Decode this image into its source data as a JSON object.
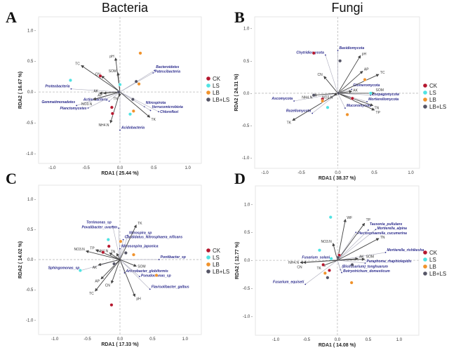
{
  "groups": [
    {
      "name": "CK",
      "color": "#b5172e"
    },
    {
      "name": "LS",
      "color": "#4fe3e3"
    },
    {
      "name": "LB",
      "color": "#f0922b"
    },
    {
      "name": "LB+LS",
      "color": "#555566"
    }
  ],
  "chart_data": [
    {
      "panel": "A",
      "type": "scatter",
      "title": "Bacteria",
      "xlabel": "RDA1 ( 25.44 %)",
      "ylabel": "RDA2 ( 16.67 %)",
      "xlim": [
        -1.2,
        1.2
      ],
      "ylim": [
        -1.16,
        1.22
      ],
      "xticks": [
        -1.0,
        -0.5,
        0.0,
        0.5,
        1.0
      ],
      "yticks": [
        -1.0,
        -0.5,
        0.0,
        0.5,
        1.0
      ],
      "legend": "right",
      "env": [
        {
          "label": "pH",
          "x": -0.065,
          "y": 0.55
        },
        {
          "label": "SOM",
          "x": -0.03,
          "y": 0.31
        },
        {
          "label": "TC",
          "x": -0.57,
          "y": 0.43
        },
        {
          "label": "CN",
          "x": -0.27,
          "y": 0.26
        },
        {
          "label": "AK",
          "x": -0.3,
          "y": -0.02
        },
        {
          "label": "AP",
          "x": -0.24,
          "y": -0.02
        },
        {
          "label": "NO3.N",
          "x": -0.39,
          "y": -0.12
        },
        {
          "label": "TN",
          "x": -0.01,
          "y": -0.07
        },
        {
          "label": "NH4.N",
          "x": -0.14,
          "y": -0.5
        },
        {
          "label": "TK",
          "x": 0.44,
          "y": -0.41
        }
      ],
      "taxa": [
        {
          "label": "Bacteroidetes",
          "x": 0.51,
          "y": 0.35
        },
        {
          "label": "Patescibacteria",
          "x": 0.49,
          "y": 0.31
        },
        {
          "label": "Proteobacteria",
          "x": -0.72,
          "y": 0.05
        },
        {
          "label": "Actinobacteria",
          "x": -0.16,
          "y": -0.15
        },
        {
          "label": "Gemmatimonadetes",
          "x": -0.64,
          "y": -0.22
        },
        {
          "label": "Planctomycetes",
          "x": -0.47,
          "y": -0.26
        },
        {
          "label": "Nitrospirota",
          "x": 0.36,
          "y": -0.24
        },
        {
          "label": "Verrucomicrobiota",
          "x": 0.45,
          "y": -0.3
        },
        {
          "label": "Chloroflexi",
          "x": 0.57,
          "y": -0.32
        },
        {
          "label": "Acidobacteria",
          "x": 0.0,
          "y": -0.62
        }
      ],
      "samples": [
        {
          "group": "CK",
          "x": -0.29,
          "y": 0.26
        },
        {
          "group": "CK",
          "x": -0.12,
          "y": -0.25
        },
        {
          "group": "CK",
          "x": -0.11,
          "y": -0.35
        },
        {
          "group": "LS",
          "x": -0.73,
          "y": 0.19
        },
        {
          "group": "LS",
          "x": 0.0,
          "y": 0.12
        },
        {
          "group": "LS",
          "x": 0.15,
          "y": -0.36
        },
        {
          "group": "LB",
          "x": 0.3,
          "y": 0.63
        },
        {
          "group": "LB",
          "x": 0.28,
          "y": 0.13
        },
        {
          "group": "LB",
          "x": 0.2,
          "y": -0.31
        },
        {
          "group": "LB+LS",
          "x": 0.24,
          "y": 0.17
        },
        {
          "group": "LB+LS",
          "x": 0.19,
          "y": -0.12
        },
        {
          "group": "LB+LS",
          "x": -0.02,
          "y": 0.0
        }
      ]
    },
    {
      "panel": "B",
      "type": "scatter",
      "title": "Fungi",
      "xlabel": "RDA1 ( 38.37 %)",
      "ylabel": "RDA2 ( 24.31 %)",
      "xlim": [
        -1.14,
        1.12
      ],
      "ylim": [
        -1.16,
        1.18
      ],
      "xticks": [
        -1.0,
        -0.5,
        0.0,
        0.5,
        1.0
      ],
      "yticks": [
        -1.0,
        -0.5,
        0.0,
        0.5,
        1.0
      ],
      "legend": "right",
      "env": [
        {
          "label": "pH",
          "x": 0.31,
          "y": 0.58
        },
        {
          "label": "AP",
          "x": 0.34,
          "y": 0.34
        },
        {
          "label": "TC",
          "x": 0.56,
          "y": 0.29
        },
        {
          "label": "CN",
          "x": -0.19,
          "y": 0.26
        },
        {
          "label": "AK",
          "x": 0.19,
          "y": 0.03
        },
        {
          "label": "SOM",
          "x": 0.5,
          "y": 0.0
        },
        {
          "label": "TN",
          "x": 0.48,
          "y": -0.19
        },
        {
          "label": "TP",
          "x": 0.5,
          "y": -0.26
        },
        {
          "label": "TK",
          "x": -0.62,
          "y": -0.42
        },
        {
          "label": "NH4.N",
          "x": -0.33,
          "y": -0.03
        },
        {
          "label": "NO3.N",
          "x": -0.05,
          "y": -0.03
        }
      ],
      "taxa": [
        {
          "label": "Basidiomycota",
          "x": 0.0,
          "y": 0.66
        },
        {
          "label": "Chytridiomycota",
          "x": -0.17,
          "y": 0.59
        },
        {
          "label": "Glomeromycota",
          "x": 0.19,
          "y": 0.06
        },
        {
          "label": "Zoopagomycota",
          "x": 0.45,
          "y": -0.03
        },
        {
          "label": "Mortierellomycota",
          "x": 0.4,
          "y": -0.13
        },
        {
          "label": "Mucoromycota",
          "x": 0.1,
          "y": -0.23
        },
        {
          "label": "Rozellomycota",
          "x": -0.35,
          "y": -0.31
        },
        {
          "label": "Ascomycota",
          "x": -0.6,
          "y": -0.12
        }
      ],
      "samples": [
        {
          "group": "CK",
          "x": -0.33,
          "y": 0.62
        },
        {
          "group": "CK",
          "x": -0.21,
          "y": -0.09
        },
        {
          "group": "CK",
          "x": 0.2,
          "y": -0.08
        },
        {
          "group": "LS",
          "x": -0.14,
          "y": -0.22
        },
        {
          "group": "LS",
          "x": 0.45,
          "y": 0.0
        },
        {
          "group": "LB",
          "x": 0.37,
          "y": 0.21
        },
        {
          "group": "LB",
          "x": -0.21,
          "y": -0.12
        },
        {
          "group": "LB",
          "x": 0.13,
          "y": -0.33
        },
        {
          "group": "LB+LS",
          "x": 0.03,
          "y": 0.5
        },
        {
          "group": "LB+LS",
          "x": -0.33,
          "y": -0.03
        },
        {
          "group": "LB+LS",
          "x": 0.01,
          "y": 0.0
        }
      ]
    },
    {
      "panel": "C",
      "type": "scatter",
      "title": "",
      "xlabel": "RDA1 ( 17.33 %)",
      "ylabel": "RDA2 ( 14.02 %)",
      "xlim": [
        -1.25,
        1.25
      ],
      "ylim": [
        -1.24,
        1.23
      ],
      "xticks": [
        -1.0,
        -0.5,
        0.0,
        0.5,
        1.0
      ],
      "yticks": [
        -1.0,
        -0.5,
        0.0,
        0.5,
        1.0
      ],
      "legend": "right",
      "env": [
        {
          "label": "TK",
          "x": 0.25,
          "y": 0.57
        },
        {
          "label": "TN",
          "x": -0.05,
          "y": 0.1
        },
        {
          "label": "NH4.N",
          "x": -0.16,
          "y": 0.11
        },
        {
          "label": "TP",
          "x": -0.37,
          "y": 0.16
        },
        {
          "label": "NO3.N",
          "x": -0.52,
          "y": 0.14
        },
        {
          "label": "AK",
          "x": -0.33,
          "y": -0.09
        },
        {
          "label": "AP",
          "x": -0.29,
          "y": -0.32
        },
        {
          "label": "TC",
          "x": -0.38,
          "y": -0.52
        },
        {
          "label": "CN",
          "x": -0.13,
          "y": -0.39
        },
        {
          "label": "SOM",
          "x": 0.25,
          "y": -0.11
        },
        {
          "label": "pH",
          "x": 0.23,
          "y": -0.61
        }
      ],
      "taxa": [
        {
          "label": "Povalibacter_uvarum",
          "x": -0.02,
          "y": 0.52
        },
        {
          "label": "Terrimonas_sp",
          "x": -0.11,
          "y": 0.55
        },
        {
          "label": "Nitrospira_sp",
          "x": 0.12,
          "y": 0.4
        },
        {
          "label": "Candidatus_Nitrosphaera_nificans",
          "x": 0.05,
          "y": 0.33
        },
        {
          "label": "Nitrosospira_japonica",
          "x": 0.0,
          "y": 0.18
        },
        {
          "label": "Pontibacter_sp",
          "x": 0.6,
          "y": 0.0
        },
        {
          "label": "Sphingomonas_sp",
          "x": -0.6,
          "y": -0.18
        },
        {
          "label": "Arthrobacter_globiformis",
          "x": 0.07,
          "y": -0.22
        },
        {
          "label": "Pseudomonas_sp",
          "x": 0.3,
          "y": -0.28
        },
        {
          "label": "Flavisolibacter_galbus",
          "x": 0.46,
          "y": -0.49
        }
      ],
      "samples": [
        {
          "group": "CK",
          "x": -0.26,
          "y": 0.12
        },
        {
          "group": "CK",
          "x": -0.17,
          "y": 0.22
        },
        {
          "group": "CK",
          "x": -0.13,
          "y": -0.75
        },
        {
          "group": "LS",
          "x": -0.18,
          "y": 0.33
        },
        {
          "group": "LS",
          "x": -0.61,
          "y": -0.18
        },
        {
          "group": "LB",
          "x": 0.01,
          "y": 0.3
        },
        {
          "group": "LB",
          "x": 0.21,
          "y": 0.08
        },
        {
          "group": "LB",
          "x": 0.56,
          "y": -0.26
        },
        {
          "group": "LB+LS",
          "x": 0.09,
          "y": 0.11
        },
        {
          "group": "LB+LS",
          "x": -0.09,
          "y": -0.07
        }
      ]
    },
    {
      "panel": "D",
      "type": "scatter",
      "title": "",
      "xlabel": "RDA1 ( 14.08 %)",
      "ylabel": "RDA2 ( 12.77 %)",
      "xlim": [
        -1.33,
        1.32
      ],
      "ylim": [
        -1.34,
        1.33
      ],
      "xticks": [
        -1.0,
        -0.5,
        0.0,
        0.5,
        1.0
      ],
      "yticks": [
        -1.0,
        -0.5,
        0.0,
        0.5,
        1.0
      ],
      "legend": "right",
      "env": [
        {
          "label": "WF",
          "x": 0.13,
          "y": 0.73
        },
        {
          "label": "TP",
          "x": 0.44,
          "y": 0.66
        },
        {
          "label": "TN",
          "x": 0.67,
          "y": 0.39
        },
        {
          "label": "NO3.N",
          "x": -0.07,
          "y": 0.3
        },
        {
          "label": "AK",
          "x": 0.33,
          "y": 0.03
        },
        {
          "label": "SOM",
          "x": 0.44,
          "y": 0.02
        },
        {
          "label": "NH4.N",
          "x": -0.6,
          "y": -0.04
        },
        {
          "label": "CN",
          "x": -0.55,
          "y": -0.04
        },
        {
          "label": "TK",
          "x": -0.24,
          "y": -0.1
        }
      ],
      "taxa": [
        {
          "label": "Plectosphaerella_cucumerina",
          "x": 0.3,
          "y": 0.5
        },
        {
          "label": "Tausonia_pullulans",
          "x": 0.5,
          "y": 0.54
        },
        {
          "label": "Mortierella_alpina",
          "x": 0.62,
          "y": 0.55
        },
        {
          "label": "Mortierella_rishikesha",
          "x": 0.78,
          "y": 0.14
        },
        {
          "label": "Paraphoma_rhaphiolepidis",
          "x": 0.45,
          "y": -0.05
        },
        {
          "label": "Fusarium_solani",
          "x": -0.1,
          "y": 0.01
        },
        {
          "label": "(Bisifusarium)_tonghuarum",
          "x": 0.05,
          "y": -0.17
        },
        {
          "label": "Botryotrichum_domesticum",
          "x": 0.07,
          "y": -0.22
        },
        {
          "label": "Fusarium_equiseti",
          "x": -0.52,
          "y": -0.43
        }
      ],
      "samples": [
        {
          "group": "CK",
          "x": -0.23,
          "y": -0.08
        },
        {
          "group": "CK",
          "x": -0.13,
          "y": -0.18
        },
        {
          "group": "CK",
          "x": 0.03,
          "y": 0.09
        },
        {
          "group": "LS",
          "x": -0.11,
          "y": 0.77
        },
        {
          "group": "LS",
          "x": -0.29,
          "y": 0.18
        },
        {
          "group": "LS",
          "x": -0.1,
          "y": 0.03
        },
        {
          "group": "LB",
          "x": 0.23,
          "y": -0.4
        },
        {
          "group": "LB",
          "x": -0.2,
          "y": -0.23
        },
        {
          "group": "LB+LS",
          "x": 0.24,
          "y": -0.08
        },
        {
          "group": "LB+LS",
          "x": -0.16,
          "y": -0.31
        },
        {
          "group": "LB+LS",
          "x": 0.01,
          "y": 0.05
        }
      ]
    }
  ]
}
